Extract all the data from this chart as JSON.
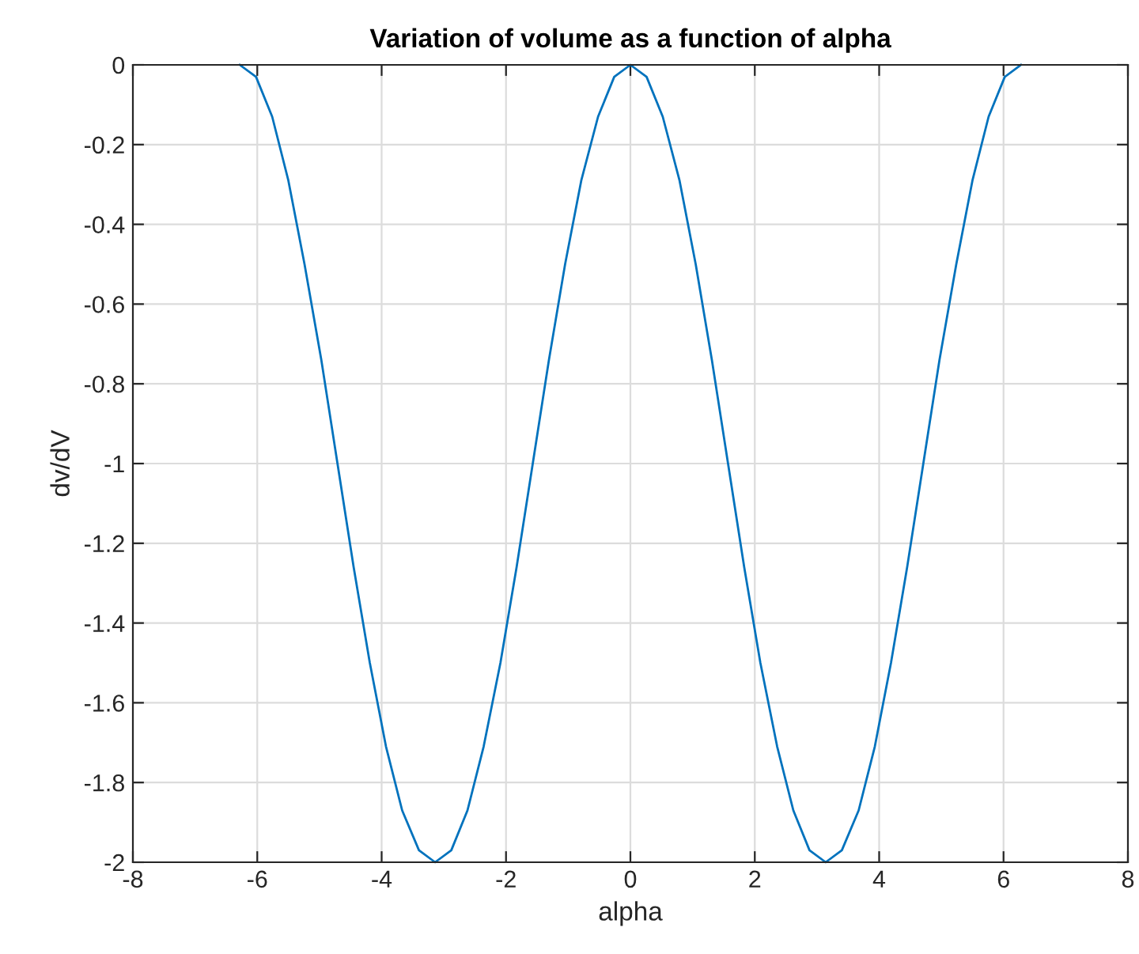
{
  "chart_data": {
    "type": "line",
    "title": "Variation of volume as a function of alpha",
    "xlabel": "alpha",
    "ylabel": "dv/dV",
    "x": [
      -6.28,
      -6.02,
      -5.76,
      -5.5,
      -5.24,
      -4.97,
      -4.71,
      -4.45,
      -4.19,
      -3.93,
      -3.67,
      -3.4,
      -3.14,
      -2.88,
      -2.62,
      -2.36,
      -2.09,
      -1.83,
      -1.57,
      -1.31,
      -1.05,
      -0.79,
      -0.52,
      -0.26,
      0,
      0.26,
      0.52,
      0.79,
      1.05,
      1.31,
      1.57,
      1.83,
      2.09,
      2.36,
      2.62,
      2.88,
      3.14,
      3.4,
      3.67,
      3.93,
      4.19,
      4.45,
      4.71,
      4.97,
      5.24,
      5.5,
      5.76,
      6.02,
      6.28
    ],
    "series": [
      {
        "color": "#0072bd",
        "values": [
          0,
          -0.03,
          -0.13,
          -0.29,
          -0.5,
          -0.74,
          -1,
          -1.26,
          -1.5,
          -1.71,
          -1.87,
          -1.97,
          -2,
          -1.97,
          -1.87,
          -1.71,
          -1.5,
          -1.26,
          -1,
          -0.74,
          -0.5,
          -0.29,
          -0.13,
          -0.03,
          0,
          -0.03,
          -0.13,
          -0.29,
          -0.5,
          -0.74,
          -1,
          -1.26,
          -1.5,
          -1.71,
          -1.87,
          -1.97,
          -2,
          -1.97,
          -1.87,
          -1.71,
          -1.5,
          -1.26,
          -1,
          -0.74,
          -0.5,
          -0.29,
          -0.13,
          -0.03,
          0
        ]
      }
    ],
    "xlim": [
      -8,
      8
    ],
    "xticks": [
      -8,
      -6,
      -4,
      -2,
      0,
      2,
      4,
      6,
      8
    ],
    "ylim": [
      -2,
      0
    ],
    "yticks": [
      -2,
      -1.8,
      -1.6,
      -1.4,
      -1.2,
      -1,
      -0.8,
      -0.6,
      -0.4,
      -0.2,
      0
    ],
    "grid": true,
    "marker": "none",
    "line_style": "solid",
    "legend": false
  }
}
